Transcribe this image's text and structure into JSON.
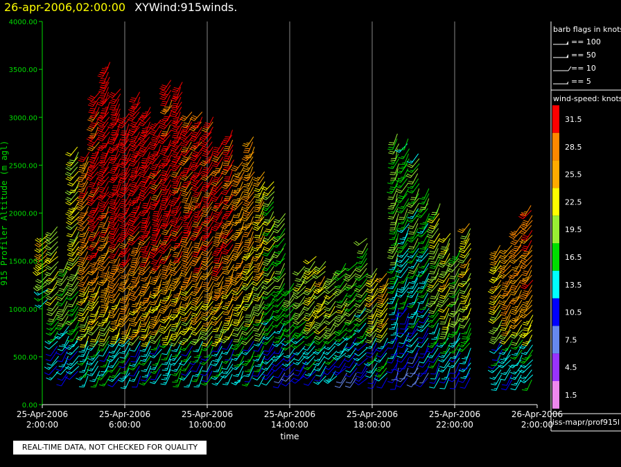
{
  "header": {
    "datetime": "26-apr-2006,02:00:00",
    "title": "XYWind:915winds."
  },
  "notice": "REAL-TIME DATA, NOT CHECKED FOR QUALITY",
  "legend": {
    "barb_title": "barb flags in knots",
    "barbs": [
      {
        "label": "== 100",
        "kind": "pennant"
      },
      {
        "label": "== 50",
        "kind": "pennant"
      },
      {
        "label": "== 10",
        "kind": "full"
      },
      {
        "label": "== 5",
        "kind": "half"
      }
    ],
    "speed_title": "wind-speed: knots",
    "speeds": [
      {
        "label": "31.5",
        "color": "#ff0000"
      },
      {
        "label": "28.5",
        "color": "#ff8800"
      },
      {
        "label": "25.5",
        "color": "#ffaa00"
      },
      {
        "label": "22.5",
        "color": "#ffff00"
      },
      {
        "label": "19.5",
        "color": "#99ee33"
      },
      {
        "label": "16.5",
        "color": "#00dd00"
      },
      {
        "label": "13.5",
        "color": "#00ffff"
      },
      {
        "label": "10.5",
        "color": "#0000ff"
      },
      {
        "label": "7.5",
        "color": "#6688ee"
      },
      {
        "label": "4.5",
        "color": "#9933ff"
      },
      {
        "label": "1.5",
        "color": "#ee88ee"
      }
    ],
    "source": "iss-mapr/prof915l"
  },
  "chart_data": {
    "type": "scatter",
    "subtype": "wind-barb",
    "ylabel": "915 Profiler Altitude (m agl)",
    "xlabel": "time",
    "ylim": [
      0,
      4000
    ],
    "xlim": [
      "2006-04-25T02:00:00",
      "2006-04-26T02:00:00"
    ],
    "yticks": [
      "0.00",
      "500.00",
      "1000.00",
      "1500.00",
      "2000.00",
      "2500.00",
      "3000.00",
      "3500.00",
      "4000.00"
    ],
    "xticks": [
      {
        "line1": "25-Apr-2006",
        "line2": "2:00:00"
      },
      {
        "line1": "25-Apr-2006",
        "line2": "6:00:00"
      },
      {
        "line1": "25-Apr-2006",
        "line2": "10:00:00"
      },
      {
        "line1": "25-Apr-2006",
        "line2": "14:00:00"
      },
      {
        "line1": "25-Apr-2006",
        "line2": "18:00:00"
      },
      {
        "line1": "25-Apr-2006",
        "line2": "22:00:00"
      },
      {
        "line1": "26-Apr-2006",
        "line2": "2:00:00"
      }
    ],
    "grid": "vertical",
    "profiles": [
      {
        "t": "2006-04-25T02:15:00",
        "y0": 1100,
        "y1": 1800,
        "speed": 24,
        "dir": 230
      },
      {
        "t": "2006-04-25T02:45:00",
        "y0": 350,
        "y1": 1900,
        "speed": 20,
        "dir": 220
      },
      {
        "t": "2006-04-25T03:15:00",
        "y0": 300,
        "y1": 1500,
        "speed": 18,
        "dir": 215
      },
      {
        "t": "2006-04-25T03:45:00",
        "y0": 350,
        "y1": 2700,
        "speed": 22,
        "dir": 215
      },
      {
        "t": "2006-04-25T04:15:00",
        "y0": 300,
        "y1": 2650,
        "speed": 28,
        "dir": 210
      },
      {
        "t": "2006-04-25T04:45:00",
        "y0": 300,
        "y1": 3300,
        "speed": 31,
        "dir": 210
      },
      {
        "t": "2006-04-25T05:15:00",
        "y0": 300,
        "y1": 3600,
        "speed": 32,
        "dir": 210
      },
      {
        "t": "2006-04-25T05:45:00",
        "y0": 280,
        "y1": 3300,
        "speed": 33,
        "dir": 210
      },
      {
        "t": "2006-04-25T06:15:00",
        "y0": 280,
        "y1": 3050,
        "speed": 33,
        "dir": 210
      },
      {
        "t": "2006-04-25T06:45:00",
        "y0": 300,
        "y1": 3300,
        "speed": 33,
        "dir": 210
      },
      {
        "t": "2006-04-25T07:15:00",
        "y0": 300,
        "y1": 3150,
        "speed": 33,
        "dir": 210
      },
      {
        "t": "2006-04-25T07:45:00",
        "y0": 320,
        "y1": 3000,
        "speed": 32,
        "dir": 210
      },
      {
        "t": "2006-04-25T08:15:00",
        "y0": 320,
        "y1": 3400,
        "speed": 32,
        "dir": 210
      },
      {
        "t": "2006-04-25T08:45:00",
        "y0": 300,
        "y1": 3400,
        "speed": 32,
        "dir": 210
      },
      {
        "t": "2006-04-25T09:15:00",
        "y0": 300,
        "y1": 3100,
        "speed": 31,
        "dir": 210
      },
      {
        "t": "2006-04-25T09:45:00",
        "y0": 300,
        "y1": 3100,
        "speed": 31,
        "dir": 210
      },
      {
        "t": "2006-04-25T10:15:00",
        "y0": 300,
        "y1": 3050,
        "speed": 31,
        "dir": 210
      },
      {
        "t": "2006-04-25T10:45:00",
        "y0": 300,
        "y1": 2750,
        "speed": 30,
        "dir": 210
      },
      {
        "t": "2006-04-25T11:15:00",
        "y0": 320,
        "y1": 2900,
        "speed": 30,
        "dir": 210
      },
      {
        "t": "2006-04-25T11:45:00",
        "y0": 300,
        "y1": 2550,
        "speed": 27,
        "dir": 210
      },
      {
        "t": "2006-04-25T12:15:00",
        "y0": 300,
        "y1": 2800,
        "speed": 26,
        "dir": 210
      },
      {
        "t": "2006-04-25T12:45:00",
        "y0": 300,
        "y1": 2450,
        "speed": 24,
        "dir": 210
      },
      {
        "t": "2006-04-25T13:15:00",
        "y0": 300,
        "y1": 2350,
        "speed": 20,
        "dir": 215
      },
      {
        "t": "2006-04-25T13:45:00",
        "y0": 280,
        "y1": 2000,
        "speed": 18,
        "dir": 215
      },
      {
        "t": "2006-04-25T14:15:00",
        "y0": 280,
        "y1": 1300,
        "speed": 16,
        "dir": 220
      },
      {
        "t": "2006-04-25T14:45:00",
        "y0": 300,
        "y1": 1450,
        "speed": 20,
        "dir": 220
      },
      {
        "t": "2006-04-25T15:15:00",
        "y0": 300,
        "y1": 1550,
        "speed": 22,
        "dir": 220
      },
      {
        "t": "2006-04-25T15:45:00",
        "y0": 300,
        "y1": 1500,
        "speed": 22,
        "dir": 220
      },
      {
        "t": "2006-04-25T16:15:00",
        "y0": 300,
        "y1": 1400,
        "speed": 20,
        "dir": 220
      },
      {
        "t": "2006-04-25T16:45:00",
        "y0": 280,
        "y1": 1500,
        "speed": 19,
        "dir": 220
      },
      {
        "t": "2006-04-25T17:15:00",
        "y0": 280,
        "y1": 1500,
        "speed": 18,
        "dir": 220
      },
      {
        "t": "2006-04-25T17:45:00",
        "y0": 280,
        "y1": 1750,
        "speed": 18,
        "dir": 220
      },
      {
        "t": "2006-04-25T18:15:00",
        "y0": 280,
        "y1": 1450,
        "speed": 22,
        "dir": 215
      },
      {
        "t": "2006-04-25T18:45:00",
        "y0": 280,
        "y1": 1400,
        "speed": 24,
        "dir": 215
      },
      {
        "t": "2006-04-25T19:15:00",
        "y0": 280,
        "y1": 2850,
        "speed": 18,
        "dir": 200
      },
      {
        "t": "2006-04-25T19:45:00",
        "y0": 280,
        "y1": 2800,
        "speed": 16,
        "dir": 210
      },
      {
        "t": "2006-04-25T20:15:00",
        "y0": 280,
        "y1": 2650,
        "speed": 17,
        "dir": 210
      },
      {
        "t": "2006-04-25T20:45:00",
        "y0": 280,
        "y1": 2300,
        "speed": 16,
        "dir": 210
      },
      {
        "t": "2006-04-25T21:15:00",
        "y0": 280,
        "y1": 2100,
        "speed": 20,
        "dir": 210
      },
      {
        "t": "2006-04-25T21:45:00",
        "y0": 280,
        "y1": 1800,
        "speed": 22,
        "dir": 210
      },
      {
        "t": "2006-04-25T22:15:00",
        "y0": 280,
        "y1": 1650,
        "speed": 19,
        "dir": 210
      },
      {
        "t": "2006-04-25T22:45:00",
        "y0": 280,
        "y1": 1900,
        "speed": 22,
        "dir": 210
      },
      {
        "t": "2006-04-26T00:15:00",
        "y0": 260,
        "y1": 1700,
        "speed": 24,
        "dir": 215
      },
      {
        "t": "2006-04-26T00:45:00",
        "y0": 260,
        "y1": 1700,
        "speed": 26,
        "dir": 215
      },
      {
        "t": "2006-04-26T01:15:00",
        "y0": 260,
        "y1": 1900,
        "speed": 28,
        "dir": 215
      },
      {
        "t": "2006-04-26T01:45:00",
        "y0": 260,
        "y1": 2100,
        "speed": 28,
        "dir": 215
      }
    ]
  }
}
